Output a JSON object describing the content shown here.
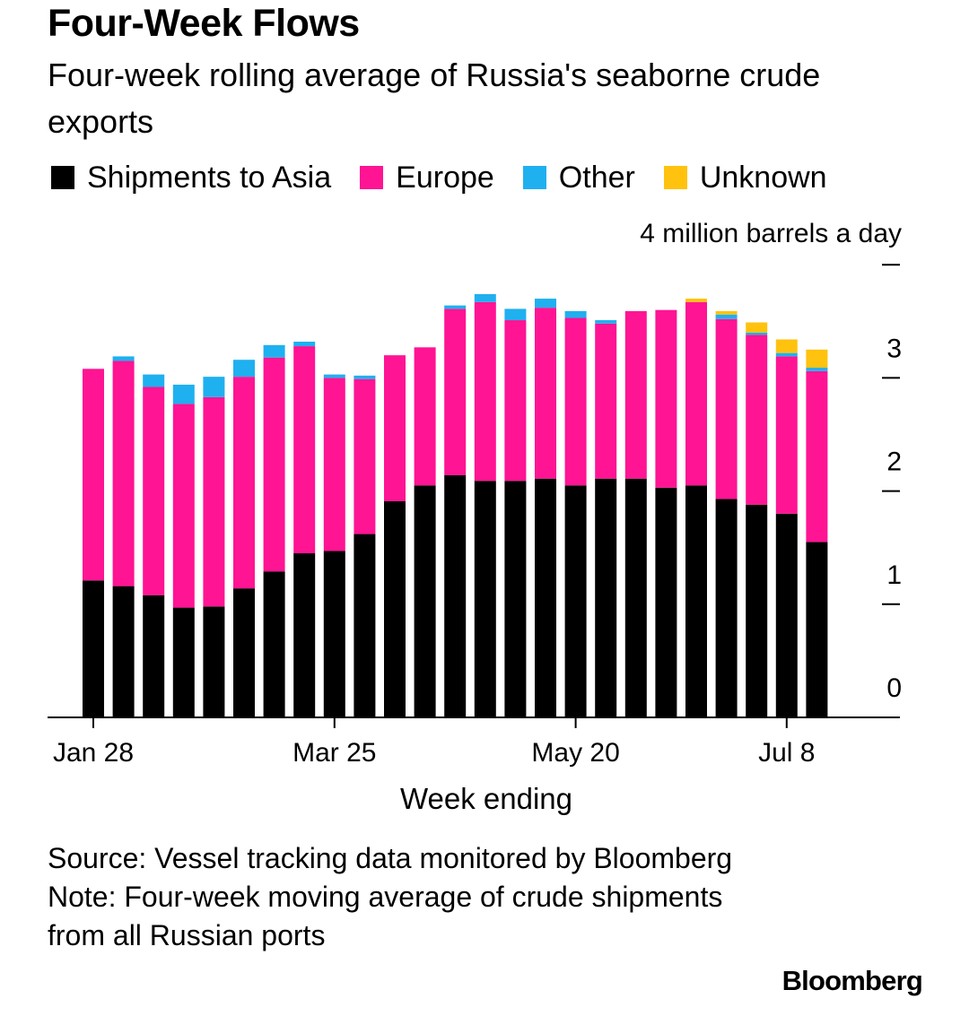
{
  "header": {
    "title": "Four-Week Flows",
    "subtitle": "Four-week rolling average of Russia's seaborne crude exports"
  },
  "legend": [
    {
      "label": "Shipments to Asia",
      "color": "#000000"
    },
    {
      "label": "Europe",
      "color": "#ff1493"
    },
    {
      "label": "Other",
      "color": "#1fb0f0"
    },
    {
      "label": "Unknown",
      "color": "#ffc20e"
    }
  ],
  "footer": {
    "source": "Source: Vessel tracking data monitored by Bloomberg",
    "note": "Note: Four-week moving average of crude shipments from all Russian ports",
    "brand": "Bloomberg"
  },
  "chart_data": {
    "type": "bar",
    "stacked": true,
    "title": "Four-Week Flows",
    "subtitle": "Four-week rolling average of Russia's seaborne crude exports",
    "xlabel": "Week ending",
    "ylabel": "4 million barrels a day",
    "ylim": [
      0,
      4
    ],
    "yticks": [
      0,
      1,
      2,
      3,
      4
    ],
    "ytick_labels": [
      "0",
      "1",
      "2",
      "3",
      ""
    ],
    "xtick_labels": [
      {
        "label": "Jan 28",
        "index": 0
      },
      {
        "label": "Mar 25",
        "index": 8
      },
      {
        "label": "May 20",
        "index": 16
      },
      {
        "label": "Jul 8",
        "index": 23
      }
    ],
    "grid": false,
    "legend_position": "top",
    "series": [
      {
        "name": "Shipments to Asia",
        "color": "#000000",
        "values": [
          1.21,
          1.16,
          1.08,
          0.97,
          0.98,
          1.14,
          1.29,
          1.45,
          1.47,
          1.62,
          1.91,
          2.05,
          2.14,
          2.09,
          2.09,
          2.11,
          2.05,
          2.11,
          2.11,
          2.03,
          2.05,
          1.93,
          1.88,
          1.8,
          1.55
        ]
      },
      {
        "name": "Europe",
        "color": "#ff1493",
        "values": [
          1.87,
          1.99,
          1.84,
          1.8,
          1.85,
          1.87,
          1.89,
          1.83,
          1.53,
          1.37,
          1.29,
          1.22,
          1.47,
          1.58,
          1.42,
          1.51,
          1.48,
          1.37,
          1.48,
          1.57,
          1.62,
          1.59,
          1.5,
          1.39,
          1.51
        ]
      },
      {
        "name": "Other",
        "color": "#1fb0f0",
        "values": [
          0.0,
          0.04,
          0.11,
          0.17,
          0.18,
          0.15,
          0.11,
          0.04,
          0.03,
          0.03,
          0.0,
          0.0,
          0.03,
          0.07,
          0.1,
          0.08,
          0.06,
          0.03,
          0.0,
          0.0,
          0.0,
          0.04,
          0.02,
          0.03,
          0.03
        ]
      },
      {
        "name": "Unknown",
        "color": "#ffc20e",
        "values": [
          0,
          0,
          0,
          0,
          0,
          0,
          0,
          0,
          0,
          0,
          0,
          0,
          0,
          0,
          0,
          0,
          0,
          0,
          0,
          0,
          0.03,
          0.03,
          0.09,
          0.12,
          0.16
        ]
      }
    ]
  }
}
